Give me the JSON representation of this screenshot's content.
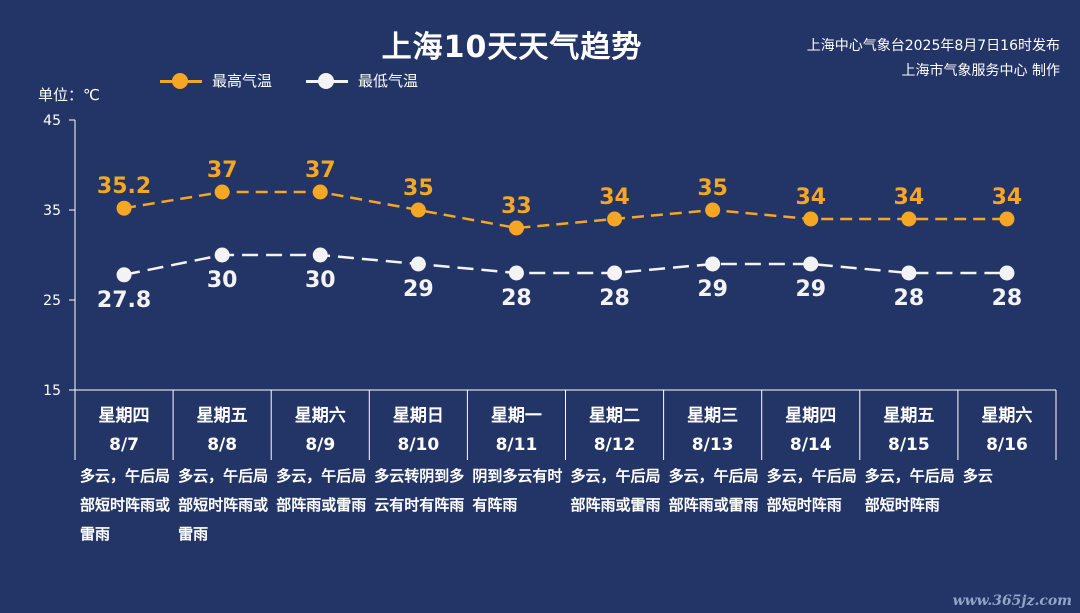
{
  "header": {
    "title": "上海10天天气趋势",
    "publisher_line1": "上海中心气象台2025年8月7日16时发布",
    "publisher_line2": "上海市气象服务中心 制作",
    "unit_label": "单位：℃"
  },
  "legend": {
    "high_label": "最高气温",
    "low_label": "最低气温"
  },
  "colors": {
    "background": "#233566",
    "high": "#f5a623",
    "low": "#f3f3f3",
    "axis": "#ffffff"
  },
  "chart_data": {
    "type": "line",
    "title": "上海10天天气趋势",
    "ylabel": "单位：℃",
    "ylim": [
      15,
      45
    ],
    "yticks": [
      15,
      25,
      35,
      45
    ],
    "grid": false,
    "legend_position": "top-left",
    "weekdays": [
      "星期四",
      "星期五",
      "星期六",
      "星期日",
      "星期一",
      "星期二",
      "星期三",
      "星期四",
      "星期五",
      "星期六"
    ],
    "categories": [
      "8/7",
      "8/8",
      "8/9",
      "8/10",
      "8/11",
      "8/12",
      "8/13",
      "8/14",
      "8/15",
      "8/16"
    ],
    "series": [
      {
        "name": "最高气温",
        "values": [
          35.2,
          37,
          37,
          35,
          33,
          34,
          35,
          34,
          34,
          34
        ],
        "labels": [
          "35.2",
          "37",
          "37",
          "35",
          "33",
          "34",
          "35",
          "34",
          "34",
          "34"
        ]
      },
      {
        "name": "最低气温",
        "values": [
          27.8,
          30,
          30,
          29,
          28,
          28,
          29,
          29,
          28,
          28
        ],
        "labels": [
          "27.8",
          "30",
          "30",
          "29",
          "28",
          "28",
          "29",
          "29",
          "28",
          "28"
        ]
      }
    ],
    "descriptions": [
      "多云，午后局部短时阵雨或雷雨",
      "多云，午后局部短时阵雨或雷雨",
      "多云，午后局部阵雨或雷雨",
      "多云转阴到多云有时有阵雨",
      "阴到多云有时有阵雨",
      "多云，午后局部阵雨或雷雨",
      "多云，午后局部阵雨或雷雨",
      "多云，午后局部短时阵雨",
      "多云，午后局部短时阵雨",
      "多云"
    ]
  },
  "watermark": "www.365jz.com"
}
